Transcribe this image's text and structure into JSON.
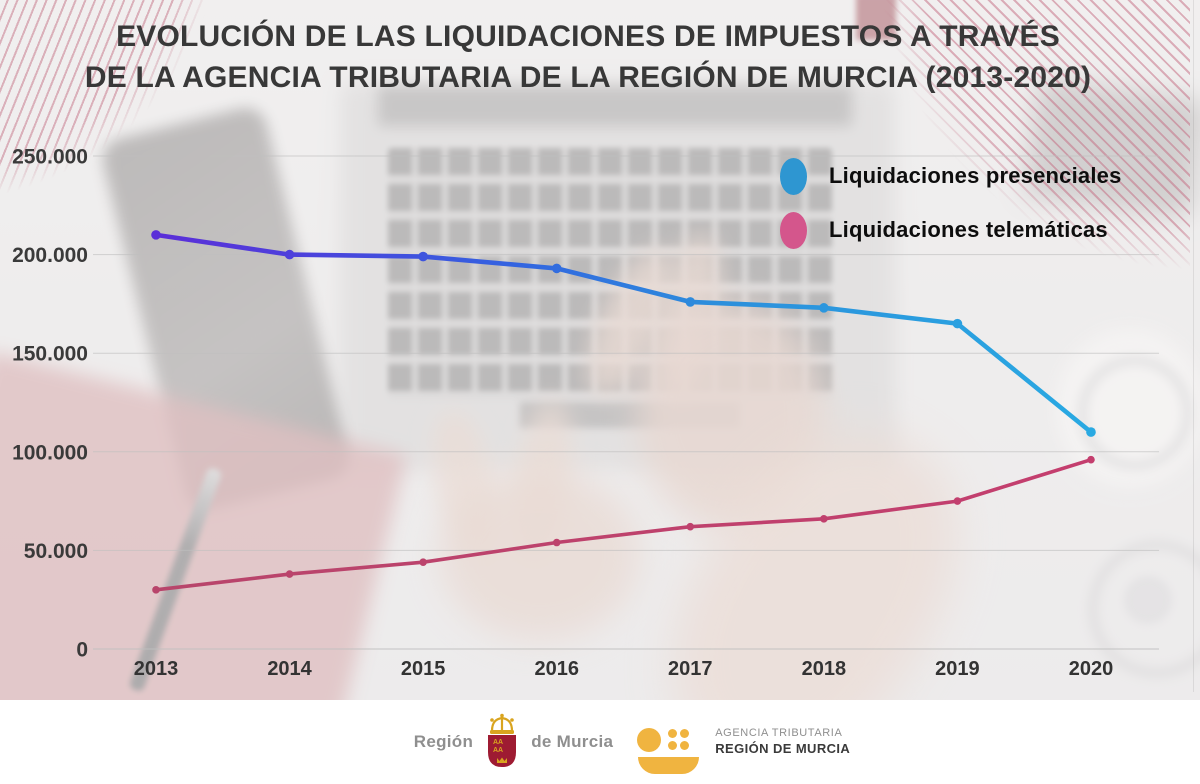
{
  "title": {
    "line1": "EVOLUCIÓN DE LAS LIQUIDACIONES DE IMPUESTOS A TRAVÉS",
    "line2": "DE LA AGENCIA TRIBUTARIA DE LA REGIÓN DE MURCIA (2013-2020)"
  },
  "legend": {
    "items": [
      {
        "label": "Liquidaciones presenciales",
        "color": "#2E96D1"
      },
      {
        "label": "Liquidaciones telemáticas",
        "color": "#D4568C"
      }
    ]
  },
  "chart_data": {
    "type": "line",
    "categories": [
      "2013",
      "2014",
      "2015",
      "2016",
      "2017",
      "2018",
      "2019",
      "2020"
    ],
    "series": [
      {
        "name": "Liquidaciones presenciales",
        "values": [
          210000,
          200000,
          199000,
          193000,
          176000,
          173000,
          165000,
          110000
        ],
        "gradient": [
          {
            "offset": "0%",
            "color": "#5B2ED8"
          },
          {
            "offset": "18%",
            "color": "#4A44DC"
          },
          {
            "offset": "38%",
            "color": "#3363E0"
          },
          {
            "offset": "60%",
            "color": "#2C8FDC"
          },
          {
            "offset": "100%",
            "color": "#29A9E2"
          }
        ]
      },
      {
        "name": "Liquidaciones telemáticas",
        "values": [
          30000,
          38000,
          44000,
          54000,
          62000,
          66000,
          75000,
          96000
        ],
        "gradient": [
          {
            "offset": "0%",
            "color": "#B8456B"
          },
          {
            "offset": "100%",
            "color": "#C43E6E"
          }
        ]
      }
    ],
    "ylim": [
      0,
      250000
    ],
    "ytick_step": 50000,
    "ytick_labels": [
      "0",
      "50.000",
      "100.000",
      "150.000",
      "200.000",
      "250.000"
    ],
    "grid": true,
    "legend_position": "top-right",
    "xlabel": "",
    "ylabel": ""
  },
  "footer": {
    "region_word_left": "Región",
    "region_word_right": "de Murcia",
    "atrm_line1": "AGENCIA TRIBUTARIA",
    "atrm_line2": "REGIÓN DE MURCIA"
  }
}
